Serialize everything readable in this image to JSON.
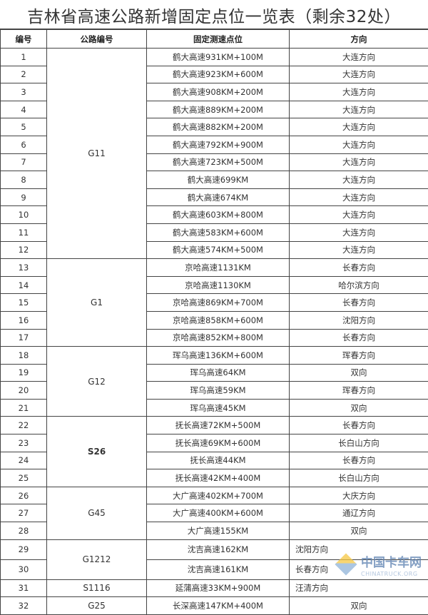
{
  "title": "吉林省高速公路新增固定点位一览表（剩余32处）",
  "headers": [
    "编号",
    "公路编号",
    "固定测速点位",
    "方向"
  ],
  "groups": [
    {
      "road": "G11",
      "bold": false,
      "rows": [
        {
          "no": "1",
          "location": "鹤大高速931KM+100M",
          "direction": "大连方向"
        },
        {
          "no": "2",
          "location": "鹤大高速923KM+600M",
          "direction": "大连方向"
        },
        {
          "no": "3",
          "location": "鹤大高速908KM+200M",
          "direction": "大连方向"
        },
        {
          "no": "4",
          "location": "鹤大高速889KM+200M",
          "direction": "大连方向"
        },
        {
          "no": "5",
          "location": "鹤大高速882KM+200M",
          "direction": "大连方向"
        },
        {
          "no": "6",
          "location": "鹤大高速792KM+900M",
          "direction": "大连方向"
        },
        {
          "no": "7",
          "location": "鹤大高速723KM+500M",
          "direction": "大连方向"
        },
        {
          "no": "8",
          "location": "鹤大高速699KM",
          "direction": "大连方向"
        },
        {
          "no": "9",
          "location": "鹤大高速674KM",
          "direction": "大连方向"
        },
        {
          "no": "10",
          "location": "鹤大高速603KM+800M",
          "direction": "大连方向"
        },
        {
          "no": "11",
          "location": "鹤大高速583KM+600M",
          "direction": "大连方向"
        },
        {
          "no": "12",
          "location": "鹤大高速574KM+500M",
          "direction": "大连方向"
        }
      ]
    },
    {
      "road": "G1",
      "bold": false,
      "rows": [
        {
          "no": "13",
          "location": "京哈高速1131KM",
          "direction": "长春方向"
        },
        {
          "no": "14",
          "location": "京哈高速1130KM",
          "direction": "哈尔滨方向"
        },
        {
          "no": "15",
          "location": "京哈高速869KM+700M",
          "direction": "长春方向"
        },
        {
          "no": "16",
          "location": "京哈高速858KM+600M",
          "direction": "沈阳方向"
        },
        {
          "no": "17",
          "location": "京哈高速852KM+800M",
          "direction": "长春方向"
        }
      ]
    },
    {
      "road": "G12",
      "bold": false,
      "rows": [
        {
          "no": "18",
          "location": "珲乌高速136KM+600M",
          "direction": "珲春方向"
        },
        {
          "no": "19",
          "location": "珲乌高速64KM",
          "direction": "双向"
        },
        {
          "no": "20",
          "location": "珲乌高速59KM",
          "direction": "珲春方向"
        },
        {
          "no": "21",
          "location": "珲乌高速45KM",
          "direction": "双向"
        }
      ]
    },
    {
      "road": "S26",
      "bold": true,
      "rows": [
        {
          "no": "22",
          "location": "抚长高速72KM+500M",
          "direction": "长春方向"
        },
        {
          "no": "23",
          "location": "抚长高速69KM+600M",
          "direction": "长白山方向"
        },
        {
          "no": "24",
          "location": "抚长高速44KM",
          "direction": "长春方向"
        },
        {
          "no": "25",
          "location": "抚长高速42KM+400M",
          "direction": "长白山方向"
        }
      ]
    },
    {
      "road": "G45",
      "bold": false,
      "rows": [
        {
          "no": "26",
          "location": "大广高速402KM+700M",
          "direction": "大庆方向"
        },
        {
          "no": "27",
          "location": "大广高速400KM+600M",
          "direction": "通辽方向"
        },
        {
          "no": "28",
          "location": "大广高速155KM",
          "direction": "双向"
        }
      ]
    },
    {
      "road": "G1212",
      "bold": false,
      "tall": true,
      "rows": [
        {
          "no": "29",
          "location": "沈吉高速162KM",
          "direction": "沈阳方向"
        },
        {
          "no": "30",
          "location": "沈吉高速161KM",
          "direction": "长春方向"
        }
      ]
    },
    {
      "road": "S1116",
      "bold": false,
      "rows": [
        {
          "no": "31",
          "location": "延蒲高速33KM+900M",
          "direction": "汪清方向"
        }
      ]
    },
    {
      "road": "G25",
      "bold": false,
      "rows": [
        {
          "no": "32",
          "location": "长深高速147KM+400M",
          "direction": "双向"
        }
      ]
    }
  ],
  "watermark": {
    "cn": "中国卡车网",
    "en": "CHINATRUCK.ORG"
  }
}
